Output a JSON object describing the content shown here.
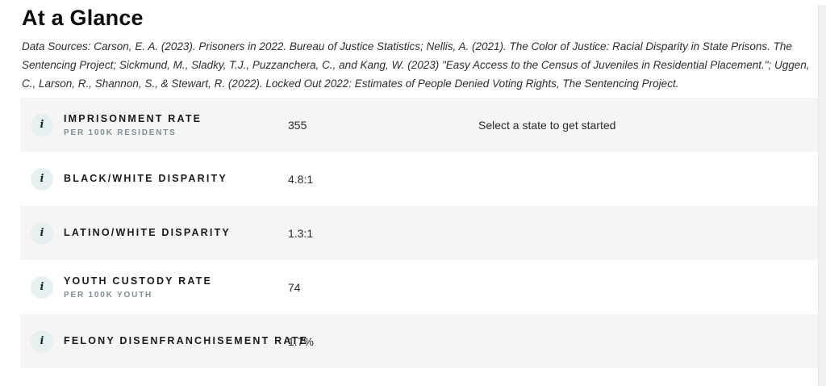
{
  "page": {
    "title": "At a Glance",
    "data_sources": "Data Sources: Carson, E. A. (2023). Prisoners in 2022. Bureau of Justice Statistics; Nellis, A. (2021). The Color of Justice: Racial Disparity in State Prisons. The Sentencing Project; Sickmund, M., Sladky, T.J., Puzzanchera, C., and Kang, W. (2023) \"Easy Access to the Census of Juveniles in Residential Placement.\"; Uggen, C., Larson, R., Shannon, S., & Stewart, R. (2022). Locked Out 2022: Estimates of People Denied Voting Rights, The Sentencing Project."
  },
  "stats": {
    "info_icon_glyph": "i",
    "rows": [
      {
        "label": "IMPRISONMENT RATE",
        "sublabel": "PER 100K RESIDENTS",
        "value": "355"
      },
      {
        "label": "BLACK/WHITE DISPARITY",
        "value": "4.8:1"
      },
      {
        "label": "LATINO/WHITE DISPARITY",
        "value": "1.3:1"
      },
      {
        "label": "YOUTH CUSTODY RATE",
        "sublabel": "PER 100K YOUTH",
        "value": "74"
      },
      {
        "label": "FELONY DISENFRANCHISEMENT RATE",
        "value": "1.7%"
      }
    ]
  },
  "right_panel": {
    "prompt": "Select a state to get started"
  },
  "colors": {
    "row_shade": "#f5f5f5",
    "icon_circle": "#e7f0f0",
    "sublabel_gray": "#7e8e91",
    "text_dark": "#2b2b2b"
  }
}
